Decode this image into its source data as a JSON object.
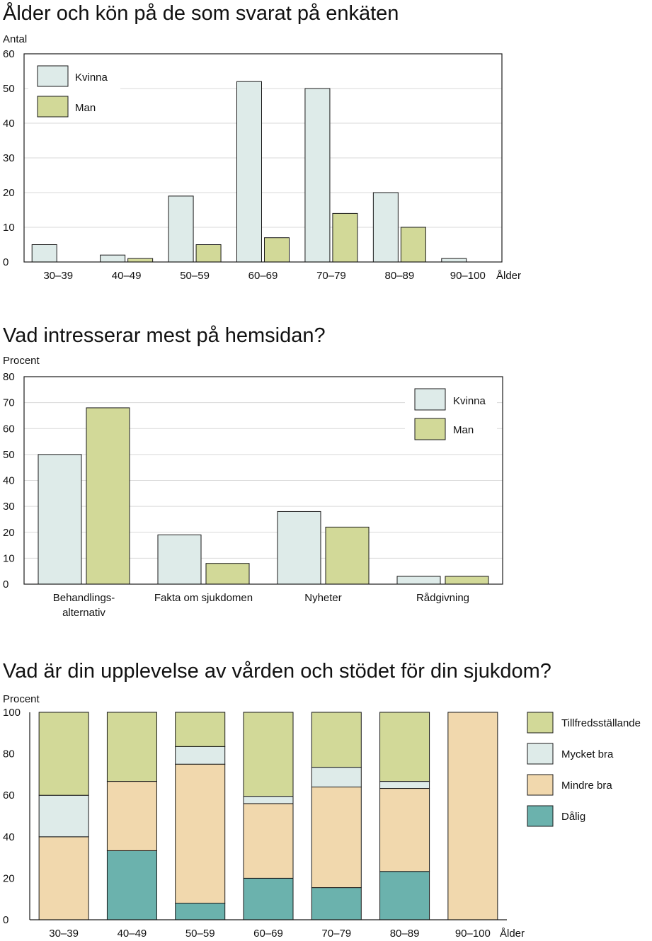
{
  "colors": {
    "kvinna": "#deebe9",
    "man": "#d2d998",
    "tillfredsstallande": "#d2d998",
    "mycket_bra": "#deebe9",
    "mindre_bra": "#f1d8ad",
    "dalig": "#6bb2ad",
    "border": "#1a1a1a",
    "grid": "#d9d9d9"
  },
  "chart_data": [
    {
      "type": "bar",
      "title": "Ålder och kön på de som svarat på enkäten",
      "ylabel": "Antal",
      "xlabel": "Ålder",
      "ylim": [
        0,
        60
      ],
      "yticks": [
        0,
        10,
        20,
        30,
        40,
        50,
        60
      ],
      "grid": true,
      "legend_position": "top-left",
      "categories": [
        "30–39",
        "40–49",
        "50–59",
        "60–69",
        "70–79",
        "80–89",
        "90–100"
      ],
      "series": [
        {
          "name": "Kvinna",
          "values": [
            5,
            2,
            19,
            52,
            50,
            20,
            1
          ]
        },
        {
          "name": "Man",
          "values": [
            0,
            1,
            5,
            7,
            14,
            10,
            0
          ]
        }
      ]
    },
    {
      "type": "bar",
      "title": "Vad intresserar mest på hemsidan?",
      "ylabel": "Procent",
      "xlabel": "",
      "ylim": [
        0,
        80
      ],
      "yticks": [
        0,
        10,
        20,
        30,
        40,
        50,
        60,
        70,
        80
      ],
      "grid": true,
      "legend_position": "top-right",
      "categories": [
        "Behandlings-\nalternativ",
        "Fakta om sjukdomen",
        "Nyheter",
        "Rådgivning"
      ],
      "series": [
        {
          "name": "Kvinna",
          "values": [
            50,
            19,
            28,
            3
          ]
        },
        {
          "name": "Man",
          "values": [
            68,
            8,
            22,
            3
          ]
        }
      ]
    },
    {
      "type": "bar",
      "stacked": true,
      "title": "Vad är din upplevelse av vården och stödet för din sjukdom?",
      "ylabel": "Procent",
      "xlabel": "Ålder",
      "ylim": [
        0,
        100
      ],
      "yticks": [
        0,
        20,
        40,
        60,
        80,
        100
      ],
      "grid": false,
      "legend_position": "right",
      "categories": [
        "30–39",
        "40–49",
        "50–59",
        "60–69",
        "70–79",
        "80–89",
        "90–100"
      ],
      "series": [
        {
          "name": "Dålig",
          "values": [
            0,
            33.3,
            8,
            20,
            15.5,
            23.3,
            0
          ]
        },
        {
          "name": "Mindre bra",
          "values": [
            40,
            33.4,
            67,
            36,
            48.5,
            40,
            100
          ]
        },
        {
          "name": "Mycket bra",
          "values": [
            20,
            0,
            8.5,
            3.5,
            9.5,
            3.4,
            0
          ]
        },
        {
          "name": "Tillfredsställande",
          "values": [
            40,
            33.3,
            16.5,
            40.5,
            26.5,
            33.3,
            0
          ]
        }
      ],
      "legend_order": [
        "Tillfredsställande",
        "Mycket bra",
        "Mindre bra",
        "Dålig"
      ]
    }
  ]
}
